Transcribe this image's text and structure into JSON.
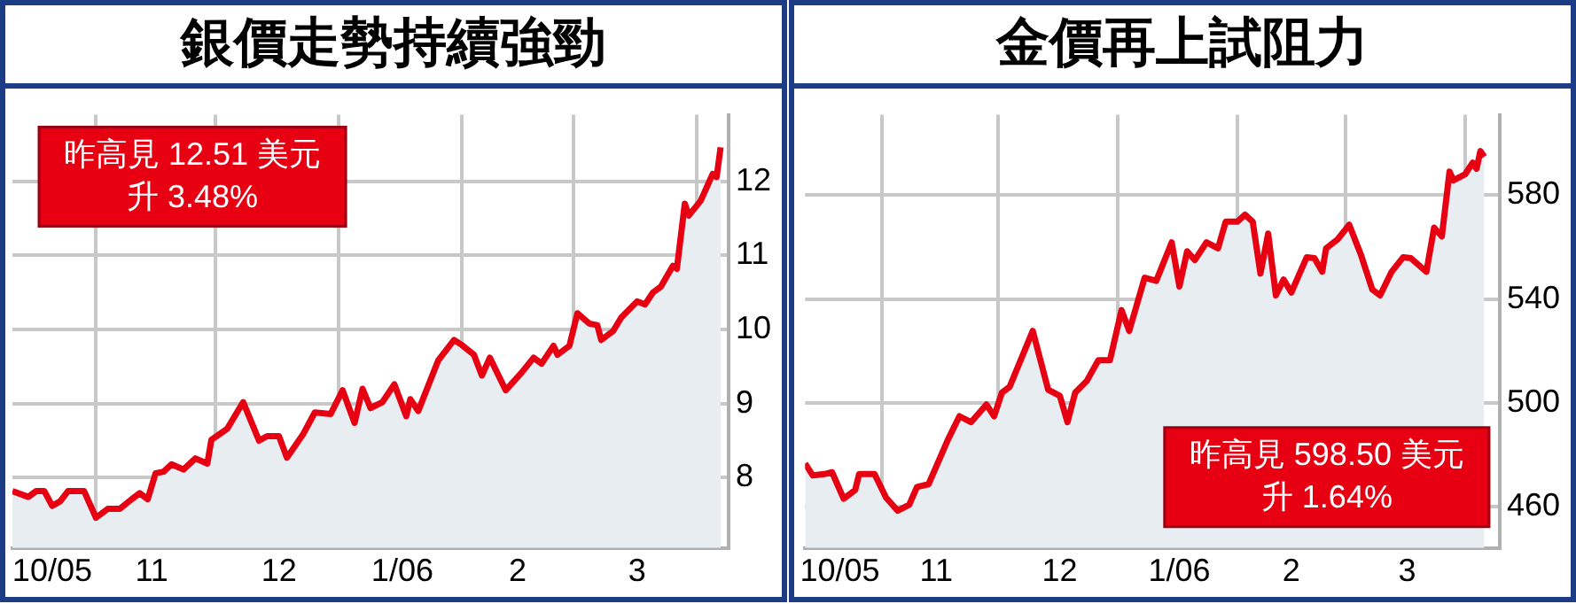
{
  "chart_data": [
    {
      "type": "area",
      "title": "銀價走勢持續強勁",
      "annotations": [
        "昨高見 12.51 美元",
        "升 3.48%"
      ],
      "x": [
        "2005-10-11",
        "2005-10-15",
        "2005-10-17",
        "2005-10-19",
        "2005-10-21",
        "2005-10-23",
        "2005-10-25",
        "2005-10-29",
        "2005-11-01",
        "2005-11-04",
        "2005-11-07",
        "2005-11-10",
        "2005-11-12",
        "2005-11-14",
        "2005-11-16",
        "2005-11-18",
        "2005-11-20",
        "2005-11-23",
        "2005-11-26",
        "2005-11-29",
        "2005-11-30",
        "2005-12-04",
        "2005-12-08",
        "2005-12-12",
        "2005-12-14",
        "2005-12-17",
        "2005-12-19",
        "2005-12-23",
        "2005-12-26",
        "2005-12-30",
        "2006-01-02",
        "2006-01-05",
        "2006-01-07",
        "2006-01-09",
        "2006-01-12",
        "2006-01-15",
        "2006-01-18",
        "2006-01-19",
        "2006-01-21",
        "2006-01-26",
        "2006-01-30",
        "2006-02-01",
        "2006-02-04",
        "2006-02-06",
        "2006-02-08",
        "2006-02-12",
        "2006-02-14",
        "2006-02-16",
        "2006-02-19",
        "2006-02-21",
        "2006-02-24",
        "2006-02-25",
        "2006-02-28",
        "2006-03-02",
        "2006-03-05",
        "2006-03-07",
        "2006-03-08",
        "2006-03-11",
        "2006-03-13",
        "2006-03-17",
        "2006-03-19",
        "2006-03-21",
        "2006-03-23",
        "2006-03-26",
        "2006-03-27",
        "2006-03-29",
        "2006-03-30",
        "2006-04-02",
        "2006-04-05",
        "2006-04-06",
        "2006-04-07"
      ],
      "series": [
        {
          "color": "#e60012",
          "values": [
            7.82,
            7.74,
            7.82,
            7.82,
            7.62,
            7.68,
            7.82,
            7.82,
            7.46,
            7.58,
            7.58,
            7.71,
            7.79,
            7.71,
            8.06,
            8.08,
            8.18,
            8.11,
            8.26,
            8.19,
            8.51,
            8.66,
            9.02,
            8.5,
            8.56,
            8.56,
            8.27,
            8.58,
            8.88,
            8.86,
            9.18,
            8.74,
            9.2,
            8.94,
            9.02,
            9.26,
            8.83,
            9.06,
            8.9,
            9.58,
            9.86,
            9.79,
            9.66,
            9.38,
            9.62,
            9.18,
            9.3,
            9.42,
            9.62,
            9.54,
            9.78,
            9.66,
            9.78,
            10.22,
            10.08,
            10.06,
            9.86,
            9.98,
            10.16,
            10.38,
            10.34,
            10.5,
            10.58,
            10.86,
            10.82,
            11.7,
            11.54,
            11.74,
            12.1,
            12.06,
            12.46
          ]
        }
      ],
      "xlim": [
        "2005-10-11",
        "2006-04-09"
      ],
      "xticks": [
        {
          "value": "2005-10-21",
          "label": "10/05"
        },
        {
          "value": "2005-11-01",
          "label": null
        },
        {
          "value": "2005-11-15",
          "label": "11"
        },
        {
          "value": "2005-12-01",
          "label": null
        },
        {
          "value": "2005-12-17",
          "label": "12"
        },
        {
          "value": "2006-01-01",
          "label": null
        },
        {
          "value": "2006-01-17",
          "label": "1/06"
        },
        {
          "value": "2006-02-01",
          "label": null
        },
        {
          "value": "2006-02-15",
          "label": "2"
        },
        {
          "value": "2006-03-01",
          "label": null
        },
        {
          "value": "2006-03-17",
          "label": "3"
        },
        {
          "value": "2006-04-01",
          "label": null
        }
      ],
      "ylim": [
        7.05,
        12.9
      ],
      "yticks": [
        8,
        9,
        10,
        11,
        12
      ],
      "grid": true
    },
    {
      "type": "area",
      "title": "金價再上試阻力",
      "annotations": [
        "昨高見 598.50 美元",
        "升 1.64%"
      ],
      "x": [
        "2005-10-12",
        "2005-10-14",
        "2005-10-17",
        "2005-10-19",
        "2005-10-22",
        "2005-10-25",
        "2005-10-26",
        "2005-10-30",
        "2005-11-02",
        "2005-11-05",
        "2005-11-08",
        "2005-11-10",
        "2005-11-13",
        "2005-11-18",
        "2005-11-21",
        "2005-11-24",
        "2005-11-28",
        "2005-11-30",
        "2005-12-02",
        "2005-12-04",
        "2005-12-10",
        "2005-12-14",
        "2005-12-17",
        "2005-12-19",
        "2005-12-21",
        "2005-12-24",
        "2005-12-27",
        "2005-12-30",
        "2006-01-02",
        "2006-01-04",
        "2006-01-08",
        "2006-01-11",
        "2006-01-15",
        "2006-01-17",
        "2006-01-19",
        "2006-01-21",
        "2006-01-24",
        "2006-01-27",
        "2006-01-29",
        "2006-02-01",
        "2006-02-03",
        "2006-02-05",
        "2006-02-07",
        "2006-02-09",
        "2006-02-11",
        "2006-02-13",
        "2006-02-15",
        "2006-02-19",
        "2006-02-21",
        "2006-02-23",
        "2006-02-24",
        "2006-02-27",
        "2006-03-02",
        "2006-03-05",
        "2006-03-08",
        "2006-03-10",
        "2006-03-13",
        "2006-03-16",
        "2006-03-18",
        "2006-03-22",
        "2006-03-24",
        "2006-03-26",
        "2006-03-28",
        "2006-03-29",
        "2006-04-01",
        "2006-04-03",
        "2006-04-04",
        "2006-04-05",
        "2006-04-06"
      ],
      "series": [
        {
          "color": "#e60012",
          "values": [
            476.6,
            472,
            472.5,
            473.2,
            463,
            466.4,
            472.5,
            472.5,
            463.4,
            458.4,
            460.7,
            467.5,
            468.6,
            485.7,
            494.8,
            492.5,
            499.3,
            494.8,
            503.9,
            506.1,
            527.7,
            505,
            502.7,
            492.5,
            503.9,
            508.4,
            516.4,
            516.4,
            535.7,
            527.7,
            548.2,
            547,
            561.8,
            544.8,
            558.4,
            555,
            561.8,
            559.5,
            569.8,
            569.8,
            572.5,
            569.8,
            549.8,
            565.2,
            541.4,
            547.5,
            542.5,
            556.1,
            555.7,
            550.5,
            559.5,
            563,
            568.6,
            557.2,
            543.6,
            541.4,
            550.5,
            556.1,
            555.7,
            550.5,
            567.5,
            564.1,
            589.1,
            585.7,
            588,
            592.5,
            590.2,
            597,
            594.8
          ]
        }
      ],
      "xlim": [
        "2005-10-12",
        "2006-04-10"
      ],
      "xticks": [
        {
          "value": "2005-10-21",
          "label": "10/05"
        },
        {
          "value": "2005-11-01",
          "label": null
        },
        {
          "value": "2005-11-15",
          "label": "11"
        },
        {
          "value": "2005-12-01",
          "label": null
        },
        {
          "value": "2005-12-17",
          "label": "12"
        },
        {
          "value": "2006-01-01",
          "label": null
        },
        {
          "value": "2006-01-17",
          "label": "1/06"
        },
        {
          "value": "2006-02-01",
          "label": null
        },
        {
          "value": "2006-02-15",
          "label": "2"
        },
        {
          "value": "2006-03-01",
          "label": null
        },
        {
          "value": "2006-03-17",
          "label": "3"
        },
        {
          "value": "2006-04-01",
          "label": null
        }
      ],
      "ylim": [
        444,
        611
      ],
      "yticks": [
        460,
        500,
        540,
        580
      ],
      "grid": true
    }
  ]
}
